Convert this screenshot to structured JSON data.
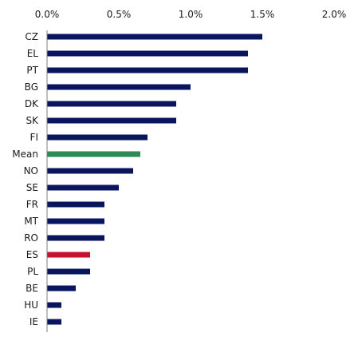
{
  "chart_data": {
    "type": "bar",
    "orientation": "horizontal",
    "title": "",
    "xlabel": "",
    "ylabel": "",
    "xlim": [
      0,
      0.02
    ],
    "x_ticks": [
      0,
      0.005,
      0.01,
      0.015,
      0.02
    ],
    "x_tick_labels": [
      "0.0%",
      "0.5%",
      "1.0%",
      "1.5%",
      "2.0%"
    ],
    "x_axis_position": "top",
    "grid": false,
    "legend": "none",
    "categories": [
      "CZ",
      "EL",
      "PT",
      "BG",
      "DK",
      "SK",
      "FI",
      "Mean",
      "NO",
      "SE",
      "FR",
      "MT",
      "RO",
      "ES",
      "PL",
      "BE",
      "HU",
      "IE"
    ],
    "values": [
      0.015,
      0.014,
      0.014,
      0.01,
      0.009,
      0.009,
      0.007,
      0.0065,
      0.006,
      0.005,
      0.004,
      0.004,
      0.004,
      0.003,
      0.003,
      0.002,
      0.001,
      0.001
    ],
    "colors": {
      "default": "#0a1560",
      "Mean": "#2e8b57",
      "ES": "#c4122f",
      "axis": "#7f7f7f"
    }
  }
}
